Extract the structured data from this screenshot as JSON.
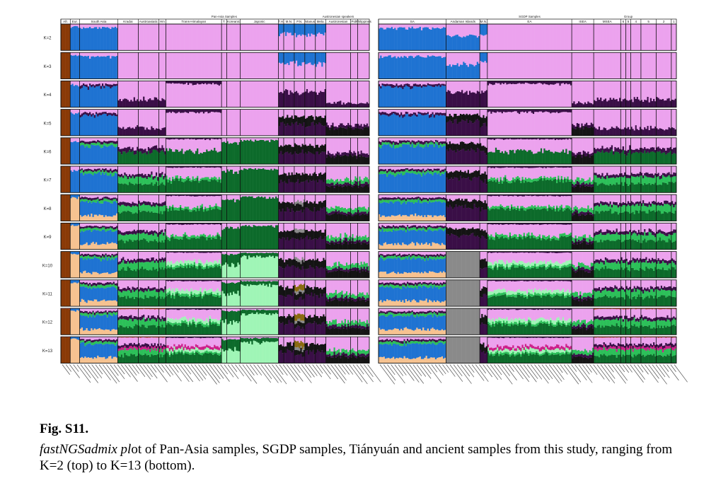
{
  "caption": {
    "title": "Fig. S11.",
    "italic_part": "fastNGSadmix pl",
    "rest": "ot of Pan-Asia samples, SGDP samples, Tiányuán and ancient samples from this study, ranging from K=2 (top) to K=13 (bottom)."
  },
  "chart_data": {
    "type": "bar",
    "stacked": true,
    "normalized": true,
    "ylim": [
      0,
      1
    ],
    "rows": [
      "K=2",
      "K=3",
      "K=4",
      "K=5",
      "K=6",
      "K=7",
      "K=8",
      "K=9",
      "K=10",
      "K=11",
      "K=12",
      "K=13"
    ],
    "panels": [
      {
        "name": "Pan-Asia",
        "super_labels": [
          {
            "label": "Pan-Asia Samples",
            "group": "T."
          },
          {
            "label": "Austronesian speakers",
            "group": "Austronesian"
          }
        ],
        "groups": [
          {
            "label": "Afr.",
            "weight": 1.6
          },
          {
            "label": "Eur.",
            "weight": 1.6
          },
          {
            "label": "South Asia",
            "weight": 6.5
          },
          {
            "label": "Kradai",
            "weight": 3.5
          },
          {
            "label": "Austroasiatic",
            "weight": 3.5
          },
          {
            "label": "Hm",
            "weight": 1.2
          },
          {
            "label": "Trans-Himalayan",
            "weight": 9.5
          },
          {
            "label": "T.",
            "weight": 0.9
          },
          {
            "label": "Koreanic",
            "weight": 2.3
          },
          {
            "label": "Japonic",
            "weight": 6.5
          },
          {
            "label": "T.H.",
            "weight": 0.9
          },
          {
            "label": "M.N.",
            "weight": 1.8
          },
          {
            "label": "P.N.",
            "weight": 1.8
          },
          {
            "label": "Manus",
            "weight": 1.8
          },
          {
            "label": "Mela.",
            "weight": 1.8
          },
          {
            "label": "Austronesian",
            "weight": 4.2
          },
          {
            "label": "Pol.",
            "weight": 1.2
          },
          {
            "label": "Philippines",
            "weight": 2.0
          }
        ]
      },
      {
        "name": "SGDP",
        "super_labels": [
          {
            "label": "SGDP Samples",
            "group": "EA"
          },
          {
            "label": "Group",
            "group": "5"
          }
        ],
        "groups": [
          {
            "label": "SA",
            "weight": 8.0
          },
          {
            "label": "Andaman Islands",
            "weight": 4.0
          },
          {
            "label": "M.N.",
            "weight": 0.9
          },
          {
            "label": "EA",
            "weight": 10.0
          },
          {
            "label": "ISEA",
            "weight": 2.6
          },
          {
            "label": "MSEA",
            "weight": 3.2
          },
          {
            "label": "6",
            "weight": 0.6
          },
          {
            "label": "5",
            "weight": 0.6
          },
          {
            "label": "4",
            "weight": 1.2
          },
          {
            "label": "5",
            "weight": 1.8
          },
          {
            "label": "2",
            "weight": 1.8
          },
          {
            "label": "1",
            "weight": 0.6
          }
        ]
      }
    ],
    "ancestry_components": [
      {
        "id": "afr",
        "color": "#8a3a07"
      },
      {
        "id": "eur",
        "color": "#f6c290"
      },
      {
        "id": "south-asia",
        "color": "#1f73d2"
      },
      {
        "id": "east-asia",
        "color": "#eca2ee"
      },
      {
        "id": "sahul",
        "color": "#3a0f47"
      },
      {
        "id": "papuan",
        "color": "#141414"
      },
      {
        "id": "austroasiatic",
        "color": "#0d6b2b"
      },
      {
        "id": "kradai",
        "color": "#2cc059"
      },
      {
        "id": "japonic",
        "color": "#9ff5b6"
      },
      {
        "id": "andaman",
        "color": "#8a8a8a"
      },
      {
        "id": "mn",
        "color": "#8a6a10"
      },
      {
        "id": "extra",
        "color": "#cc1f8a"
      },
      {
        "id": "minor",
        "color": "#d83a1c"
      }
    ]
  }
}
